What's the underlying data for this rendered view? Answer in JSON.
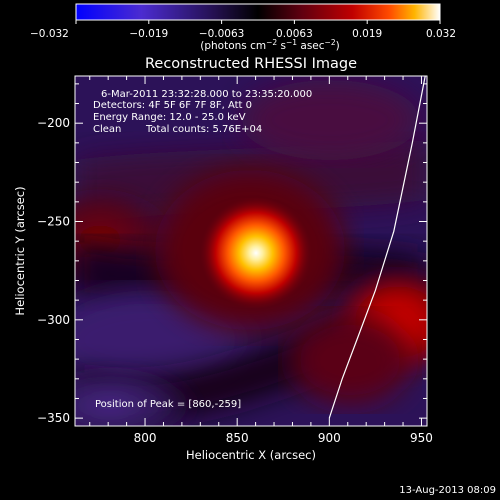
{
  "chart_data": {
    "type": "heatmap",
    "title": "Reconstructed RHESSI Image",
    "xlabel": "Heliocentric X (arcsec)",
    "ylabel": "Heliocentric Y (arcsec)",
    "xlim": [
      762,
      953
    ],
    "ylim": [
      -354,
      -176
    ],
    "x_ticks": [
      800,
      850,
      900,
      950
    ],
    "y_ticks": [
      -200,
      -250,
      -300,
      -350
    ],
    "colorbar": {
      "range": [
        -0.032,
        0.032
      ],
      "ticks": [
        "−0.032",
        "−0.019",
        "−0.0063",
        "0.0063",
        "0.019",
        "0.032"
      ],
      "label": "(photons cm",
      "label_parts": [
        "(photons cm",
        "−2",
        " s",
        "−1",
        " asec",
        "−2",
        ")"
      ],
      "colors": [
        "#0000ff",
        "#5a2fc8",
        "#2a0f5a",
        "#000000",
        "#5a0010",
        "#b80000",
        "#ff3a00",
        "#ffb000",
        "#ffffff"
      ]
    },
    "annotations": {
      "time_range": "6-Mar-2011 23:32:28.000 to 23:35:20.000",
      "detectors": "Detectors: 4F 5F 6F 7F 8F, Att 0",
      "energy_range": "Energy Range: 12.0 - 25.0 keV",
      "algorithm": "Clean",
      "total_counts": "Total counts: 5.76E+04",
      "peak_position": "Position of Peak = [860,-259]"
    },
    "peak": {
      "x": 860,
      "y": -259
    },
    "sources": [
      {
        "x": 860,
        "y": -259,
        "value": 0.032
      },
      {
        "x": 940,
        "y": -305,
        "value": 0.015
      },
      {
        "x": 775,
        "y": -240,
        "value": 0.012
      }
    ],
    "limb_curve": [
      [
        952,
        -176
      ],
      [
        945,
        -210
      ],
      [
        935,
        -255
      ],
      [
        925,
        -285
      ],
      [
        915,
        -310
      ],
      [
        907,
        -330
      ],
      [
        900,
        -350
      ]
    ],
    "timestamp": "13-Aug-2013 08:09"
  }
}
